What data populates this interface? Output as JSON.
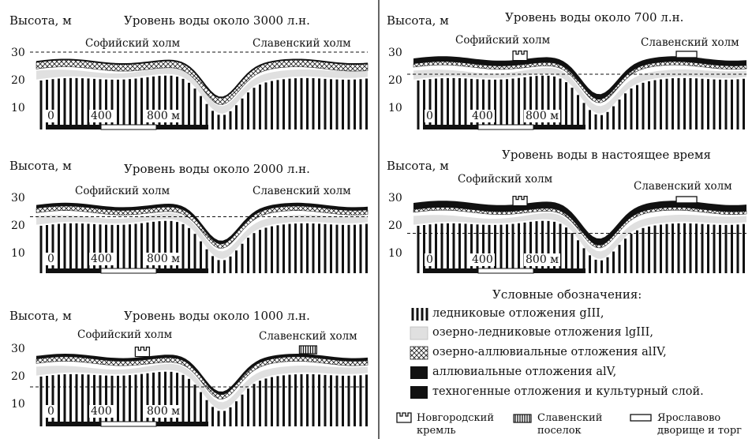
{
  "panels": [
    {
      "id": "p1",
      "title": "Уровень воды около 3000 л.н.",
      "ylabel": "Высота, м",
      "hill_left": "Софийский холм",
      "hill_right": "Славенский холм",
      "ticks": [
        "30",
        "20",
        "10"
      ],
      "scale": [
        "0",
        "400",
        "800 м"
      ],
      "water_level": 30,
      "mark_left": "",
      "mark_right": ""
    },
    {
      "id": "p2",
      "title": "Уровень воды около 2000 л.н.",
      "ylabel": "Высота, м",
      "hill_left": "Софийский холм",
      "hill_right": "Славенский холм",
      "ticks": [
        "30",
        "20",
        "10"
      ],
      "scale": [
        "0",
        "400",
        "800 м"
      ],
      "water_level": 23,
      "mark_left": "",
      "mark_right": ""
    },
    {
      "id": "p3",
      "title": "Уровень воды около 1000 л.н.",
      "ylabel": "Высота, м",
      "hill_left": "Софийский холм",
      "hill_right": "Славенский холм",
      "ticks": [
        "30",
        "20",
        "10"
      ],
      "scale": [
        "0",
        "400",
        "800 м"
      ],
      "water_level": 16,
      "mark_left": "kremlin",
      "mark_right": "slaven"
    },
    {
      "id": "p4",
      "title": "Уровень воды около 700 л.н.",
      "ylabel": "Высота, м",
      "hill_left": "Софийский холм",
      "hill_right": "Славенский холм",
      "ticks": [
        "30",
        "20",
        "10"
      ],
      "scale": [
        "0",
        "400",
        "800 м"
      ],
      "water_level": 22,
      "mark_left": "kremlin",
      "mark_right": "yaroslav"
    },
    {
      "id": "p5",
      "title": "Уровень воды в настоящее время",
      "ylabel": "Высота, м",
      "hill_left": "Софийский холм",
      "hill_right": "Славенский холм",
      "ticks": [
        "30",
        "20",
        "10"
      ],
      "scale": [
        "0",
        "400",
        "800 м"
      ],
      "water_level": 17,
      "mark_left": "kremlin",
      "mark_right": "yaroslav"
    }
  ],
  "legend": {
    "title": "Условные обозначения:",
    "items": [
      {
        "swatch": "stripes",
        "label": "ледниковые отложения gIII,"
      },
      {
        "swatch": "light",
        "label": "озерно-ледниковые отложения lgIII,"
      },
      {
        "swatch": "crosshatch",
        "label": "озерно-аллювиальные отложения alIV,"
      },
      {
        "swatch": "black",
        "label": "аллювиальные отложения alV,"
      },
      {
        "swatch": "black",
        "label": "техногенные отложения и культурный слой."
      }
    ],
    "symbols": [
      {
        "icon": "kremlin",
        "line1": "Новгородский",
        "line2": "кремль"
      },
      {
        "icon": "slaven",
        "line1": "Славенский",
        "line2": "поселок"
      },
      {
        "icon": "yaroslav",
        "line1": "Ярославово",
        "line2": "дворище и торг"
      }
    ]
  },
  "colors": {
    "ink": "#111111",
    "light_layer": "#e0e0e0",
    "background": "#ffffff"
  }
}
